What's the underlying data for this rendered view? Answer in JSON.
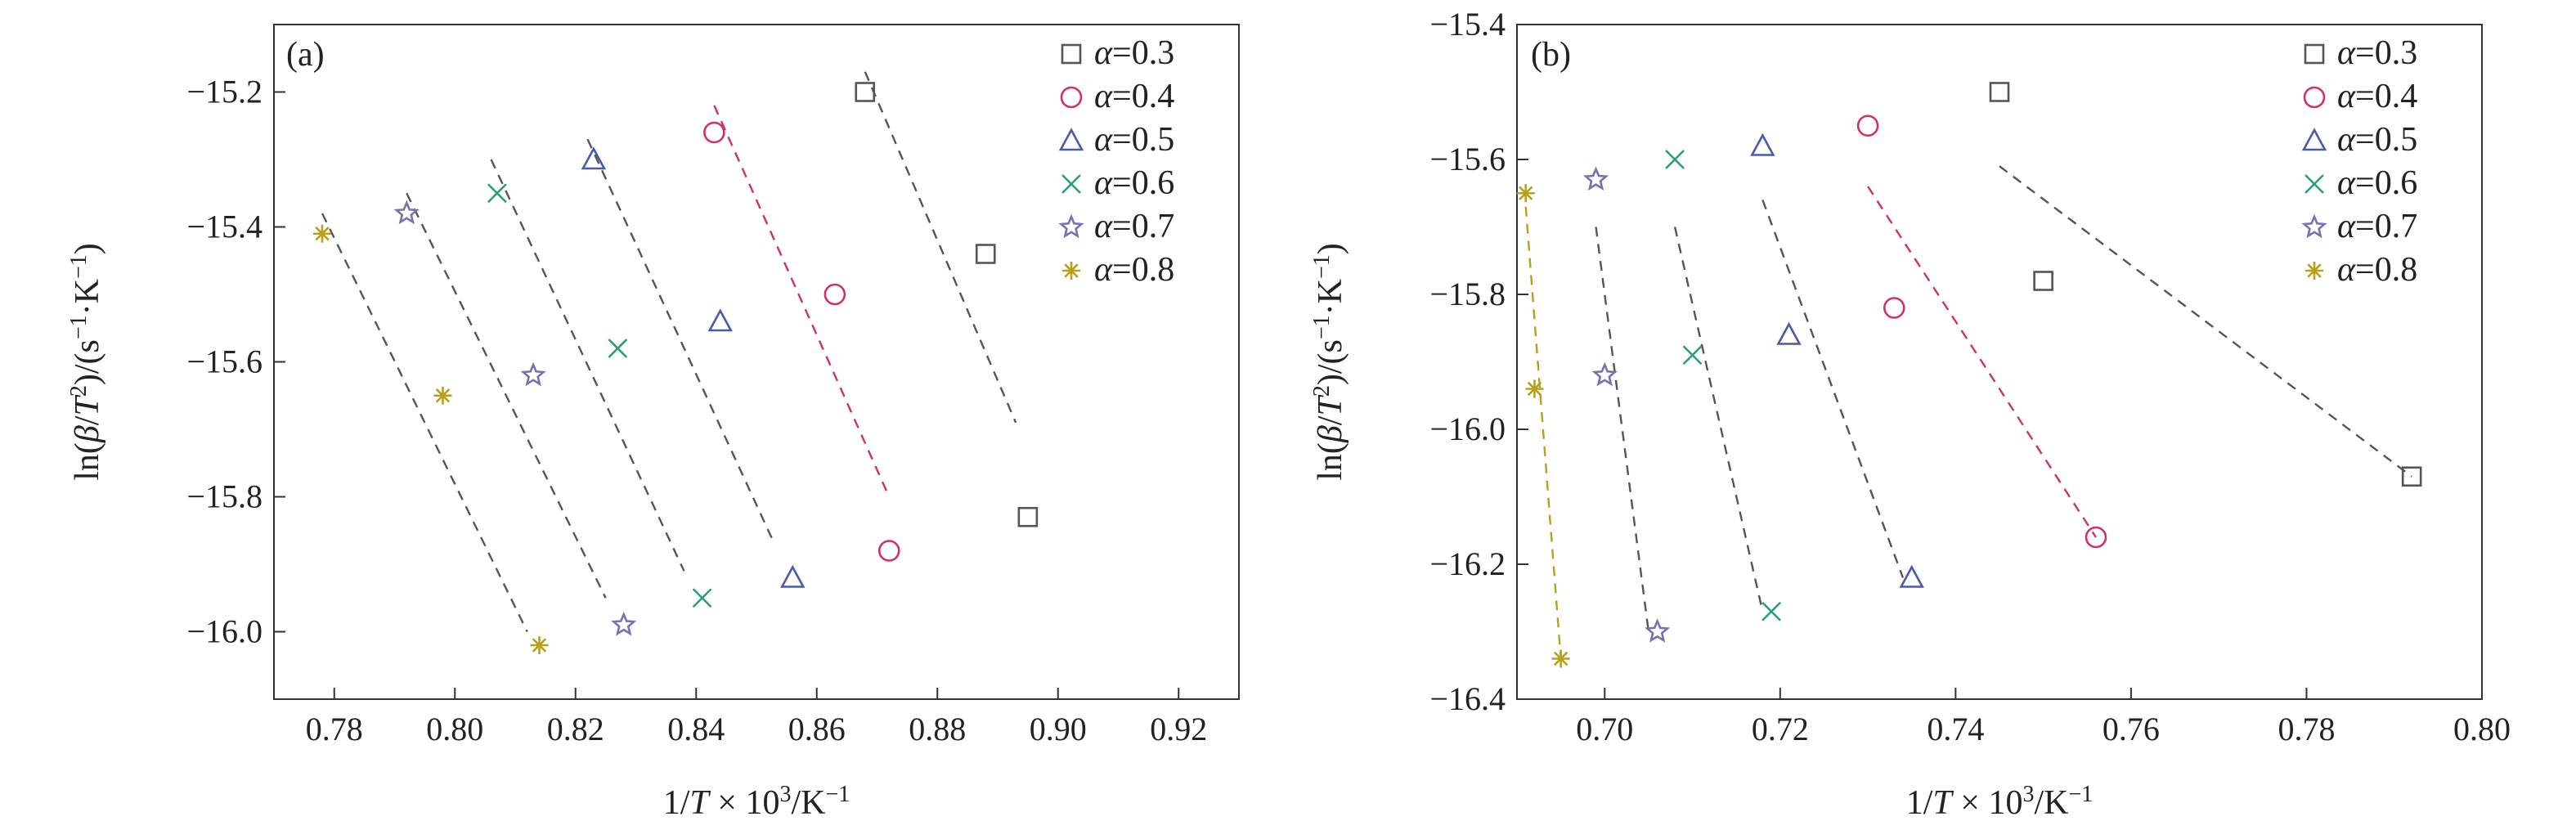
{
  "chart_data": [
    {
      "type": "scatter",
      "panel_label": "(a)",
      "xlabel_parts": [
        "1/",
        "T",
        " × 10",
        "3",
        "/K",
        "−1"
      ],
      "ylabel_parts": [
        "ln(",
        "β",
        "/",
        "T",
        "2",
        ")/(s",
        "−1",
        "·K",
        "−1",
        ")"
      ],
      "xlim": [
        0.77,
        0.93
      ],
      "ylim": [
        -16.1,
        -15.1
      ],
      "xticks": [
        0.78,
        0.8,
        0.82,
        0.84,
        0.86,
        0.88,
        0.9,
        0.92
      ],
      "xtick_labels": [
        "0.78",
        "0.80",
        "0.82",
        "0.84",
        "0.86",
        "0.88",
        "0.90",
        "0.92"
      ],
      "yticks": [
        -16.0,
        -15.8,
        -15.6,
        -15.4,
        -15.2
      ],
      "ytick_labels": [
        "−16.0",
        "−15.8",
        "−15.6",
        "−15.4",
        "−15.2"
      ],
      "legend_position": "top-right",
      "series": [
        {
          "name": "α=0.3",
          "alpha": "0.3",
          "marker": "square",
          "color": "#555555",
          "line_color": "#555555",
          "points": [
            [
              0.868,
              -15.2
            ],
            [
              0.888,
              -15.44
            ],
            [
              0.895,
              -15.83
            ]
          ],
          "fit_line": [
            [
              0.868,
              -15.17
            ],
            [
              0.893,
              -15.69
            ]
          ]
        },
        {
          "name": "α=0.4",
          "alpha": "0.4",
          "marker": "circle",
          "color": "#d0306a",
          "line_color": "#d0306a",
          "points": [
            [
              0.843,
              -15.26
            ],
            [
              0.863,
              -15.5
            ],
            [
              0.872,
              -15.88
            ]
          ],
          "fit_line": [
            [
              0.843,
              -15.22
            ],
            [
              0.872,
              -15.8
            ]
          ]
        },
        {
          "name": "α=0.5",
          "alpha": "0.5",
          "marker": "triangle",
          "color": "#4a5aa8",
          "line_color": "#555555",
          "points": [
            [
              0.823,
              -15.3
            ],
            [
              0.844,
              -15.54
            ],
            [
              0.856,
              -15.92
            ]
          ],
          "fit_line": [
            [
              0.822,
              -15.27
            ],
            [
              0.853,
              -15.87
            ]
          ]
        },
        {
          "name": "α=0.6",
          "alpha": "0.6",
          "marker": "x",
          "color": "#2a9d7a",
          "line_color": "#555555",
          "points": [
            [
              0.807,
              -15.35
            ],
            [
              0.827,
              -15.58
            ],
            [
              0.841,
              -15.95
            ]
          ],
          "fit_line": [
            [
              0.806,
              -15.3
            ],
            [
              0.838,
              -15.91
            ]
          ]
        },
        {
          "name": "α=0.7",
          "alpha": "0.7",
          "marker": "star",
          "color": "#7a6fb0",
          "line_color": "#555555",
          "points": [
            [
              0.792,
              -15.38
            ],
            [
              0.813,
              -15.62
            ],
            [
              0.828,
              -15.99
            ]
          ],
          "fit_line": [
            [
              0.792,
              -15.35
            ],
            [
              0.825,
              -15.95
            ]
          ]
        },
        {
          "name": "α=0.8",
          "alpha": "0.8",
          "marker": "asterisk",
          "color": "#b8a01c",
          "line_color": "#555555",
          "points": [
            [
              0.778,
              -15.41
            ],
            [
              0.798,
              -15.65
            ],
            [
              0.814,
              -16.02
            ]
          ],
          "fit_line": [
            [
              0.778,
              -15.38
            ],
            [
              0.812,
              -16.0
            ]
          ]
        }
      ]
    },
    {
      "type": "scatter",
      "panel_label": "(b)",
      "xlabel_parts": [
        "1/",
        "T",
        " × 10",
        "3",
        "/K",
        "−1"
      ],
      "ylabel_parts": [
        "ln(",
        "β",
        "/",
        "T",
        "2",
        ")/(s",
        "−1",
        "·K",
        "−1",
        ")"
      ],
      "xlim": [
        0.69,
        0.8
      ],
      "ylim": [
        -16.4,
        -15.4
      ],
      "xticks": [
        0.7,
        0.72,
        0.74,
        0.76,
        0.78,
        0.8
      ],
      "xtick_labels": [
        "0.70",
        "0.72",
        "0.74",
        "0.76",
        "0.78",
        "0.80"
      ],
      "yticks": [
        -16.4,
        -16.2,
        -16.0,
        -15.8,
        -15.6,
        -15.4
      ],
      "ytick_labels": [
        "−16.4",
        "−16.2",
        "−16.0",
        "−15.8",
        "−15.6",
        "−15.4"
      ],
      "legend_position": "top-right",
      "series": [
        {
          "name": "α=0.3",
          "alpha": "0.3",
          "marker": "square",
          "color": "#555555",
          "line_color": "#555555",
          "points": [
            [
              0.745,
              -15.5
            ],
            [
              0.75,
              -15.78
            ],
            [
              0.792,
              -16.07
            ]
          ],
          "fit_line": [
            [
              0.745,
              -15.61
            ],
            [
              0.792,
              -16.07
            ]
          ]
        },
        {
          "name": "α=0.4",
          "alpha": "0.4",
          "marker": "circle",
          "color": "#d0306a",
          "line_color": "#d0306a",
          "points": [
            [
              0.73,
              -15.55
            ],
            [
              0.733,
              -15.82
            ],
            [
              0.756,
              -16.16
            ]
          ],
          "fit_line": [
            [
              0.73,
              -15.64
            ],
            [
              0.756,
              -16.16
            ]
          ]
        },
        {
          "name": "α=0.5",
          "alpha": "0.5",
          "marker": "triangle",
          "color": "#4a5aa8",
          "line_color": "#555555",
          "points": [
            [
              0.718,
              -15.58
            ],
            [
              0.721,
              -15.86
            ],
            [
              0.735,
              -16.22
            ]
          ],
          "fit_line": [
            [
              0.718,
              -15.66
            ],
            [
              0.734,
              -16.22
            ]
          ]
        },
        {
          "name": "α=0.6",
          "alpha": "0.6",
          "marker": "x",
          "color": "#2a9d7a",
          "line_color": "#555555",
          "points": [
            [
              0.708,
              -15.6
            ],
            [
              0.71,
              -15.89
            ],
            [
              0.719,
              -16.27
            ]
          ],
          "fit_line": [
            [
              0.708,
              -15.7
            ],
            [
              0.718,
              -16.27
            ]
          ]
        },
        {
          "name": "α=0.7",
          "alpha": "0.7",
          "marker": "star",
          "color": "#7a6fb0",
          "line_color": "#555555",
          "points": [
            [
              0.699,
              -15.63
            ],
            [
              0.7,
              -15.92
            ],
            [
              0.706,
              -16.3
            ]
          ],
          "fit_line": [
            [
              0.699,
              -15.7
            ],
            [
              0.705,
              -16.3
            ]
          ]
        },
        {
          "name": "α=0.8",
          "alpha": "0.8",
          "marker": "asterisk",
          "color": "#b8a01c",
          "line_color": "#b8a01c",
          "points": [
            [
              0.691,
              -15.65
            ],
            [
              0.692,
              -15.94
            ],
            [
              0.695,
              -16.34
            ]
          ],
          "fit_line": [
            [
              0.691,
              -15.67
            ],
            [
              0.695,
              -16.34
            ]
          ]
        }
      ]
    }
  ]
}
